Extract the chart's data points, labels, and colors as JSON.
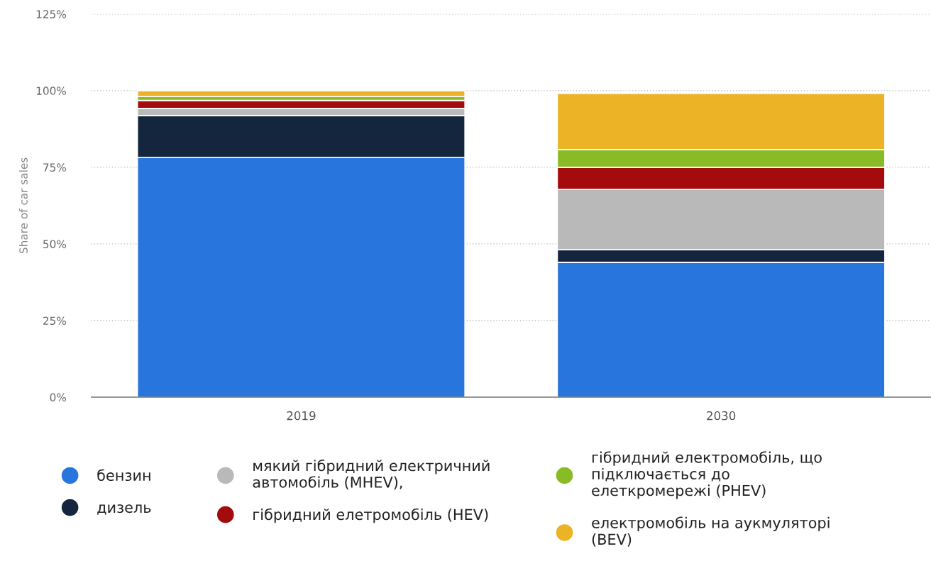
{
  "chart_data": {
    "type": "bar",
    "stacked": true,
    "ylabel": "Share of car sales",
    "categories": [
      "2019",
      "2030"
    ],
    "series": [
      {
        "name": "бензин",
        "color": "#2876dd",
        "values": [
          78.2,
          44.0
        ]
      },
      {
        "name": "дизель",
        "color": "#13263e",
        "values": [
          13.7,
          4.1
        ]
      },
      {
        "name": "мякий гібридний електричний автомобіль (MHEV),",
        "color": "#b9b9b9",
        "values": [
          2.3,
          19.7
        ]
      },
      {
        "name": "гібридний елетромобіль (HEV)",
        "color": "#a30b0d",
        "values": [
          2.6,
          7.2
        ]
      },
      {
        "name": "гібридний електромобіль, що підключається до елеткромережі (PHEV)",
        "color": "#89bb26",
        "values": [
          1.3,
          5.8
        ]
      },
      {
        "name": "електромобіль на аукмуляторі (BEV)",
        "color": "#ebb325",
        "values": [
          1.9,
          18.3
        ]
      }
    ],
    "ylim": [
      0,
      125
    ],
    "yticks": [
      {
        "value": 0,
        "label": "0%"
      },
      {
        "value": 25,
        "label": "25%"
      },
      {
        "value": 50,
        "label": "50%"
      },
      {
        "value": 75,
        "label": "75%"
      },
      {
        "value": 100,
        "label": "100%"
      },
      {
        "value": 125,
        "label": "125%"
      }
    ],
    "grid": "y",
    "legend": "bottom"
  }
}
